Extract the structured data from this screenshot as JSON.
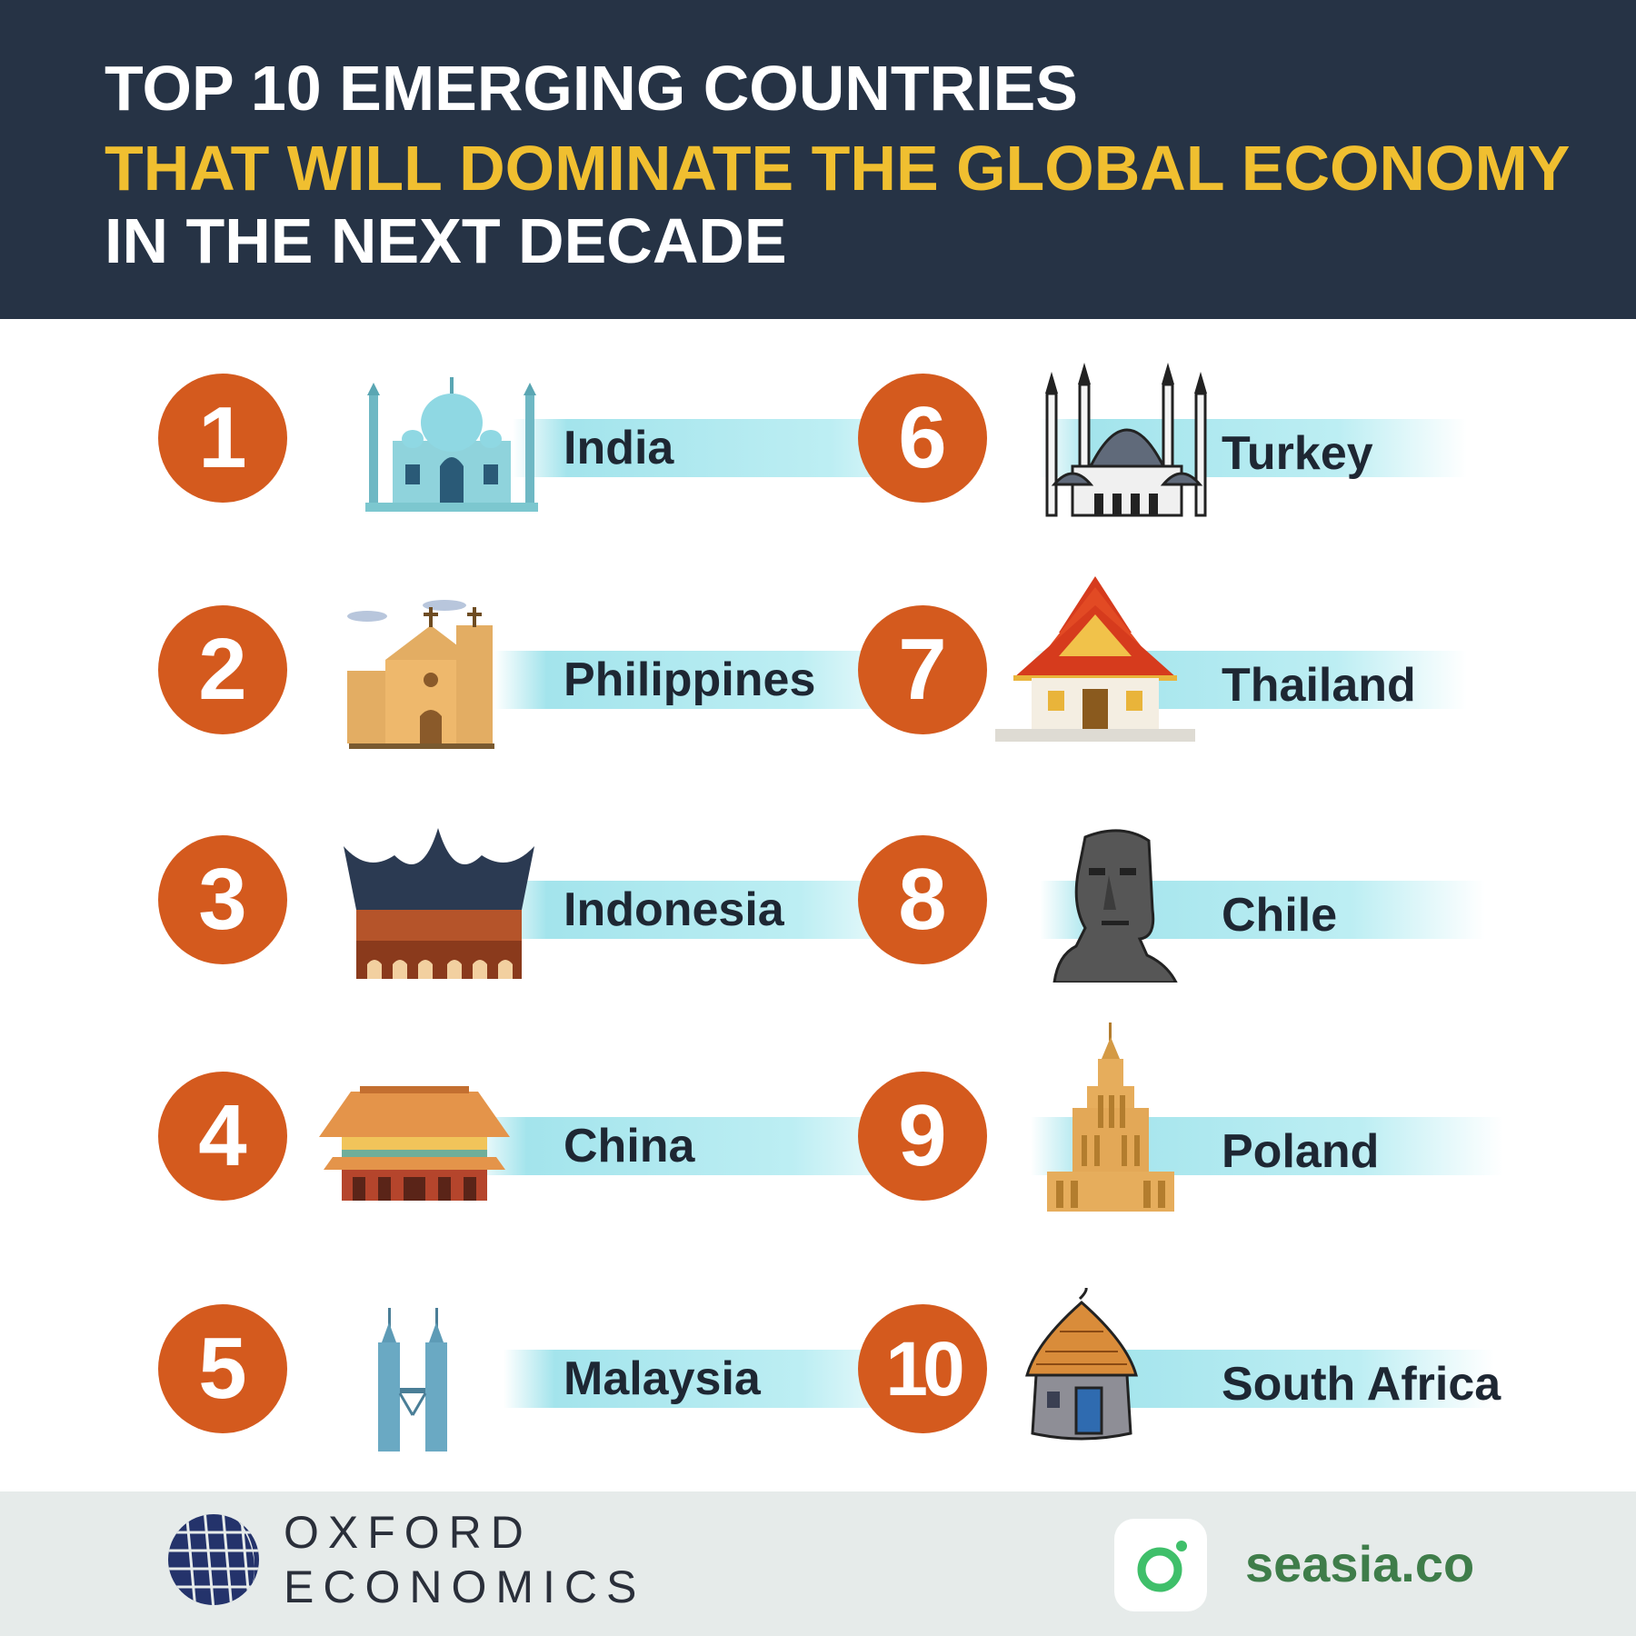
{
  "header": {
    "title_line_1": "TOP 10 EMERGING COUNTRIES",
    "title_line_2": "THAT WILL DOMINATE THE GLOBAL ECONOMY",
    "title_line_3": "IN THE NEXT DECADE"
  },
  "items": [
    {
      "rank": "1",
      "country": "India",
      "icon": "taj-mahal-icon"
    },
    {
      "rank": "2",
      "country": "Philippines",
      "icon": "church-icon"
    },
    {
      "rank": "3",
      "country": "Indonesia",
      "icon": "rumah-gadang-icon"
    },
    {
      "rank": "4",
      "country": "China",
      "icon": "forbidden-city-icon"
    },
    {
      "rank": "5",
      "country": "Malaysia",
      "icon": "petronas-towers-icon"
    },
    {
      "rank": "6",
      "country": "Turkey",
      "icon": "blue-mosque-icon"
    },
    {
      "rank": "7",
      "country": "Thailand",
      "icon": "thai-temple-icon"
    },
    {
      "rank": "8",
      "country": "Chile",
      "icon": "moai-icon"
    },
    {
      "rank": "9",
      "country": "Poland",
      "icon": "palace-of-culture-icon"
    },
    {
      "rank": "10",
      "country": "South Africa",
      "icon": "hut-icon"
    }
  ],
  "footer": {
    "oxford_line_1": "OXFORD",
    "oxford_line_2": "ECONOMICS",
    "seasia_text": "seasia.co"
  },
  "colors": {
    "header_bg": "#263345",
    "title_white": "#ffffff",
    "title_yellow": "#f0bf30",
    "badge": "#d45a1e",
    "ribbon": "#a3e4ec",
    "footer_bg": "#e6ebea",
    "seasia_green": "#3f7d4a"
  }
}
